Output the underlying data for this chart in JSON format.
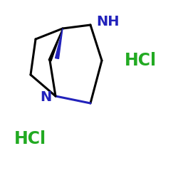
{
  "background_color": "#ffffff",
  "bond_color": "#000000",
  "stereo_bond_color": "#2222bb",
  "label_color": "#2222bb",
  "hcl_color": "#22aa22",
  "NH_label": "NH",
  "N_label": "N",
  "HCl1_label": "HCl",
  "HCl2_label": "HCl",
  "label_fontsize": 14,
  "hcl_fontsize": 17,
  "lw": 2.2
}
